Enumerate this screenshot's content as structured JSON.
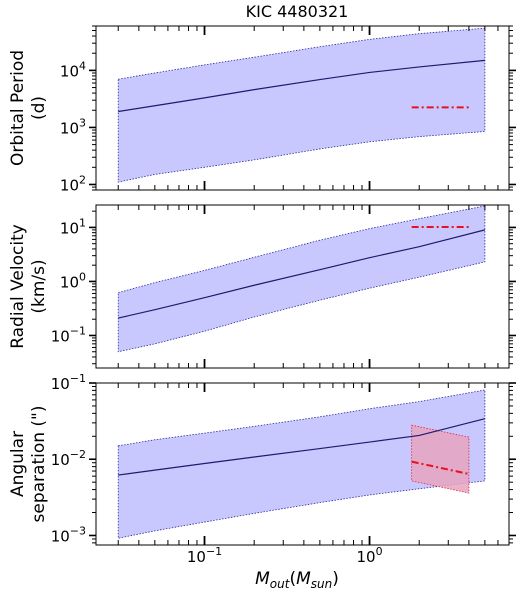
{
  "chart_data": {
    "title": "KIC 4480321",
    "xlabel": "M_out(M_sun)",
    "xscale": "log",
    "xlim": [
      0.022,
      7.0
    ],
    "x_tick_labels": [
      {
        "x": 0.1,
        "base": "10",
        "exp": "−1"
      },
      {
        "x": 1,
        "base": "10",
        "exp": "0"
      }
    ],
    "panels": [
      {
        "id": "orbital-period",
        "type": "line",
        "ylabel_lines": [
          "Orbital Period",
          "(d)"
        ],
        "yscale": "log",
        "ylim": [
          80,
          60000
        ],
        "y_tick_labels": [
          {
            "y": 100,
            "base": "10",
            "exp": "2"
          },
          {
            "y": 1000,
            "base": "10",
            "exp": "3"
          },
          {
            "y": 10000,
            "base": "10",
            "exp": "4"
          }
        ],
        "band_color": "#c8c8ff",
        "series": [
          {
            "role": "band",
            "x": [
              0.03,
              0.05,
              0.1,
              0.2,
              0.5,
              1,
              2,
              5
            ],
            "lower": [
              110,
              150,
              200,
              270,
              420,
              560,
              690,
              850
            ],
            "upper": [
              7000,
              9000,
              12500,
              17000,
              26000,
              35000,
              44000,
              55000
            ]
          },
          {
            "role": "median",
            "x": [
              0.03,
              0.05,
              0.1,
              0.2,
              0.5,
              1,
              2,
              5
            ],
            "y": [
              1900,
              2400,
              3300,
              4600,
              6900,
              9200,
              11500,
              15000
            ]
          },
          {
            "role": "observed",
            "x": [
              1.8,
              4.0
            ],
            "y": [
              2250,
              2250
            ]
          }
        ]
      },
      {
        "id": "radial-velocity",
        "type": "line",
        "ylabel_lines": [
          "Radial Velocity",
          "(km/s)"
        ],
        "yscale": "log",
        "ylim": [
          0.025,
          26
        ],
        "y_tick_labels": [
          {
            "y": 0.1,
            "base": "10",
            "exp": "−1"
          },
          {
            "y": 1,
            "base": "10",
            "exp": "0"
          },
          {
            "y": 10,
            "base": "10",
            "exp": "1"
          }
        ],
        "band_color": "#c8c8ff",
        "series": [
          {
            "role": "band",
            "x": [
              0.03,
              0.05,
              0.1,
              0.2,
              0.5,
              1,
              2,
              5
            ],
            "lower": [
              0.05,
              0.07,
              0.12,
              0.22,
              0.45,
              0.75,
              1.2,
              2.3
            ],
            "upper": [
              0.62,
              0.95,
              1.6,
              2.8,
              5.8,
              9.5,
              14.5,
              25
            ]
          },
          {
            "role": "median",
            "x": [
              0.03,
              0.05,
              0.1,
              0.2,
              0.5,
              1,
              2,
              5
            ],
            "y": [
              0.21,
              0.3,
              0.5,
              0.85,
              1.65,
              2.75,
              4.4,
              9.0
            ]
          },
          {
            "role": "observed",
            "x": [
              1.8,
              4.0
            ],
            "y": [
              10.2,
              10.2
            ]
          }
        ]
      },
      {
        "id": "angular-separation",
        "type": "line",
        "ylabel_lines": [
          "Angular",
          "separation (\")"
        ],
        "yscale": "log",
        "ylim": [
          0.00075,
          0.1
        ],
        "y_tick_labels": [
          {
            "y": 0.001,
            "base": "10",
            "exp": "−3"
          },
          {
            "y": 0.01,
            "base": "10",
            "exp": "−2"
          },
          {
            "y": 0.1,
            "base": "10",
            "exp": "−1"
          }
        ],
        "band_color": "#c8c8ff",
        "obs_band_color": "#e7a3bf",
        "series": [
          {
            "role": "band",
            "x": [
              0.03,
              0.05,
              0.1,
              0.2,
              0.5,
              1,
              2,
              5
            ],
            "lower": [
              0.00092,
              0.00115,
              0.0015,
              0.00195,
              0.0027,
              0.0034,
              0.0041,
              0.0052
            ],
            "upper": [
              0.015,
              0.018,
              0.022,
              0.027,
              0.036,
              0.046,
              0.057,
              0.081
            ]
          },
          {
            "role": "median",
            "x": [
              0.03,
              0.05,
              0.1,
              0.2,
              0.5,
              1,
              2,
              5
            ],
            "y": [
              0.0062,
              0.0072,
              0.0088,
              0.0107,
              0.0138,
              0.0168,
              0.0205,
              0.034
            ]
          },
          {
            "role": "observed",
            "x": [
              1.8,
              4.0
            ],
            "y": [
              0.0093,
              0.0064
            ]
          },
          {
            "role": "observed-band",
            "x": [
              1.8,
              4.0
            ],
            "lower": [
              0.0052,
              0.0036
            ],
            "upper": [
              0.028,
              0.0195
            ]
          }
        ]
      }
    ]
  }
}
